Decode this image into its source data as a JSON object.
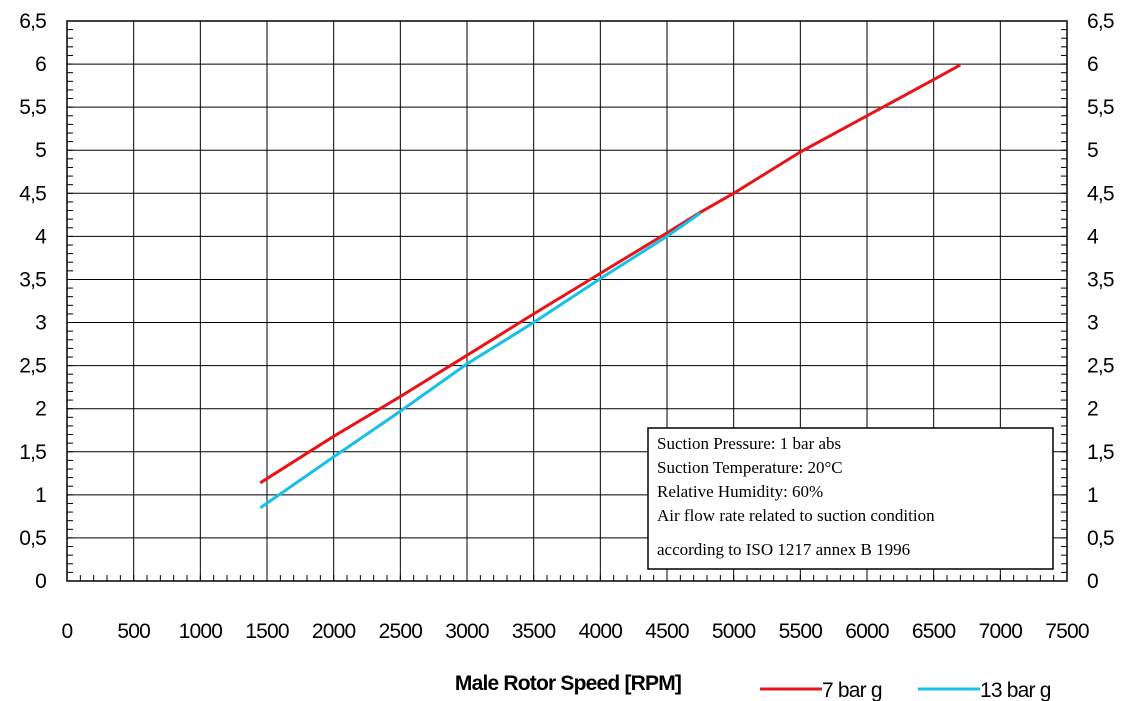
{
  "chart_data": {
    "type": "line",
    "title": "",
    "xlabel": "Male Rotor Speed [RPM]",
    "ylabel": "",
    "xlim": [
      0,
      7500
    ],
    "ylim": [
      0,
      6.5
    ],
    "grid": true,
    "x_ticks": [
      "0",
      "500",
      "1000",
      "1500",
      "2000",
      "2500",
      "3000",
      "3500",
      "4000",
      "4500",
      "5000",
      "5500",
      "6000",
      "6500",
      "7000",
      "7500"
    ],
    "y_ticks": [
      "0",
      "0,5",
      "1",
      "1,5",
      "2",
      "2,5",
      "3",
      "3,5",
      "4",
      "4,5",
      "5",
      "5,5",
      "6",
      "6,5"
    ],
    "y_ticks_right": [
      "0",
      "0,5",
      "1",
      "1,5",
      "2",
      "2,5",
      "3",
      "3,5",
      "4",
      "4,5",
      "5",
      "5,5",
      "6",
      "6,5"
    ],
    "series": [
      {
        "name": "7 bar g",
        "color": "#e8141a",
        "x": [
          1450,
          2000,
          2500,
          3000,
          3500,
          4000,
          4500,
          4750,
          5000,
          5500,
          6000,
          6500,
          6700
        ],
        "y": [
          1.14,
          1.68,
          2.14,
          2.62,
          3.1,
          3.57,
          4.04,
          4.28,
          4.5,
          4.98,
          5.4,
          5.82,
          5.99
        ]
      },
      {
        "name": "13 bar g",
        "color": "#16c0e8",
        "x": [
          1450,
          2000,
          2500,
          3000,
          3500,
          4000,
          4500,
          4750
        ],
        "y": [
          0.85,
          1.44,
          1.97,
          2.52,
          3.0,
          3.51,
          4.0,
          4.27
        ]
      }
    ],
    "legend_position": "bottom-right",
    "annotation_lines": [
      "Suction Pressure: 1 bar abs",
      "Suction Temperature:  20°C",
      "Relative Humidity: 60%",
      "Air flow rate related to suction condition",
      "according to ISO 1217 annex B 1996"
    ]
  }
}
